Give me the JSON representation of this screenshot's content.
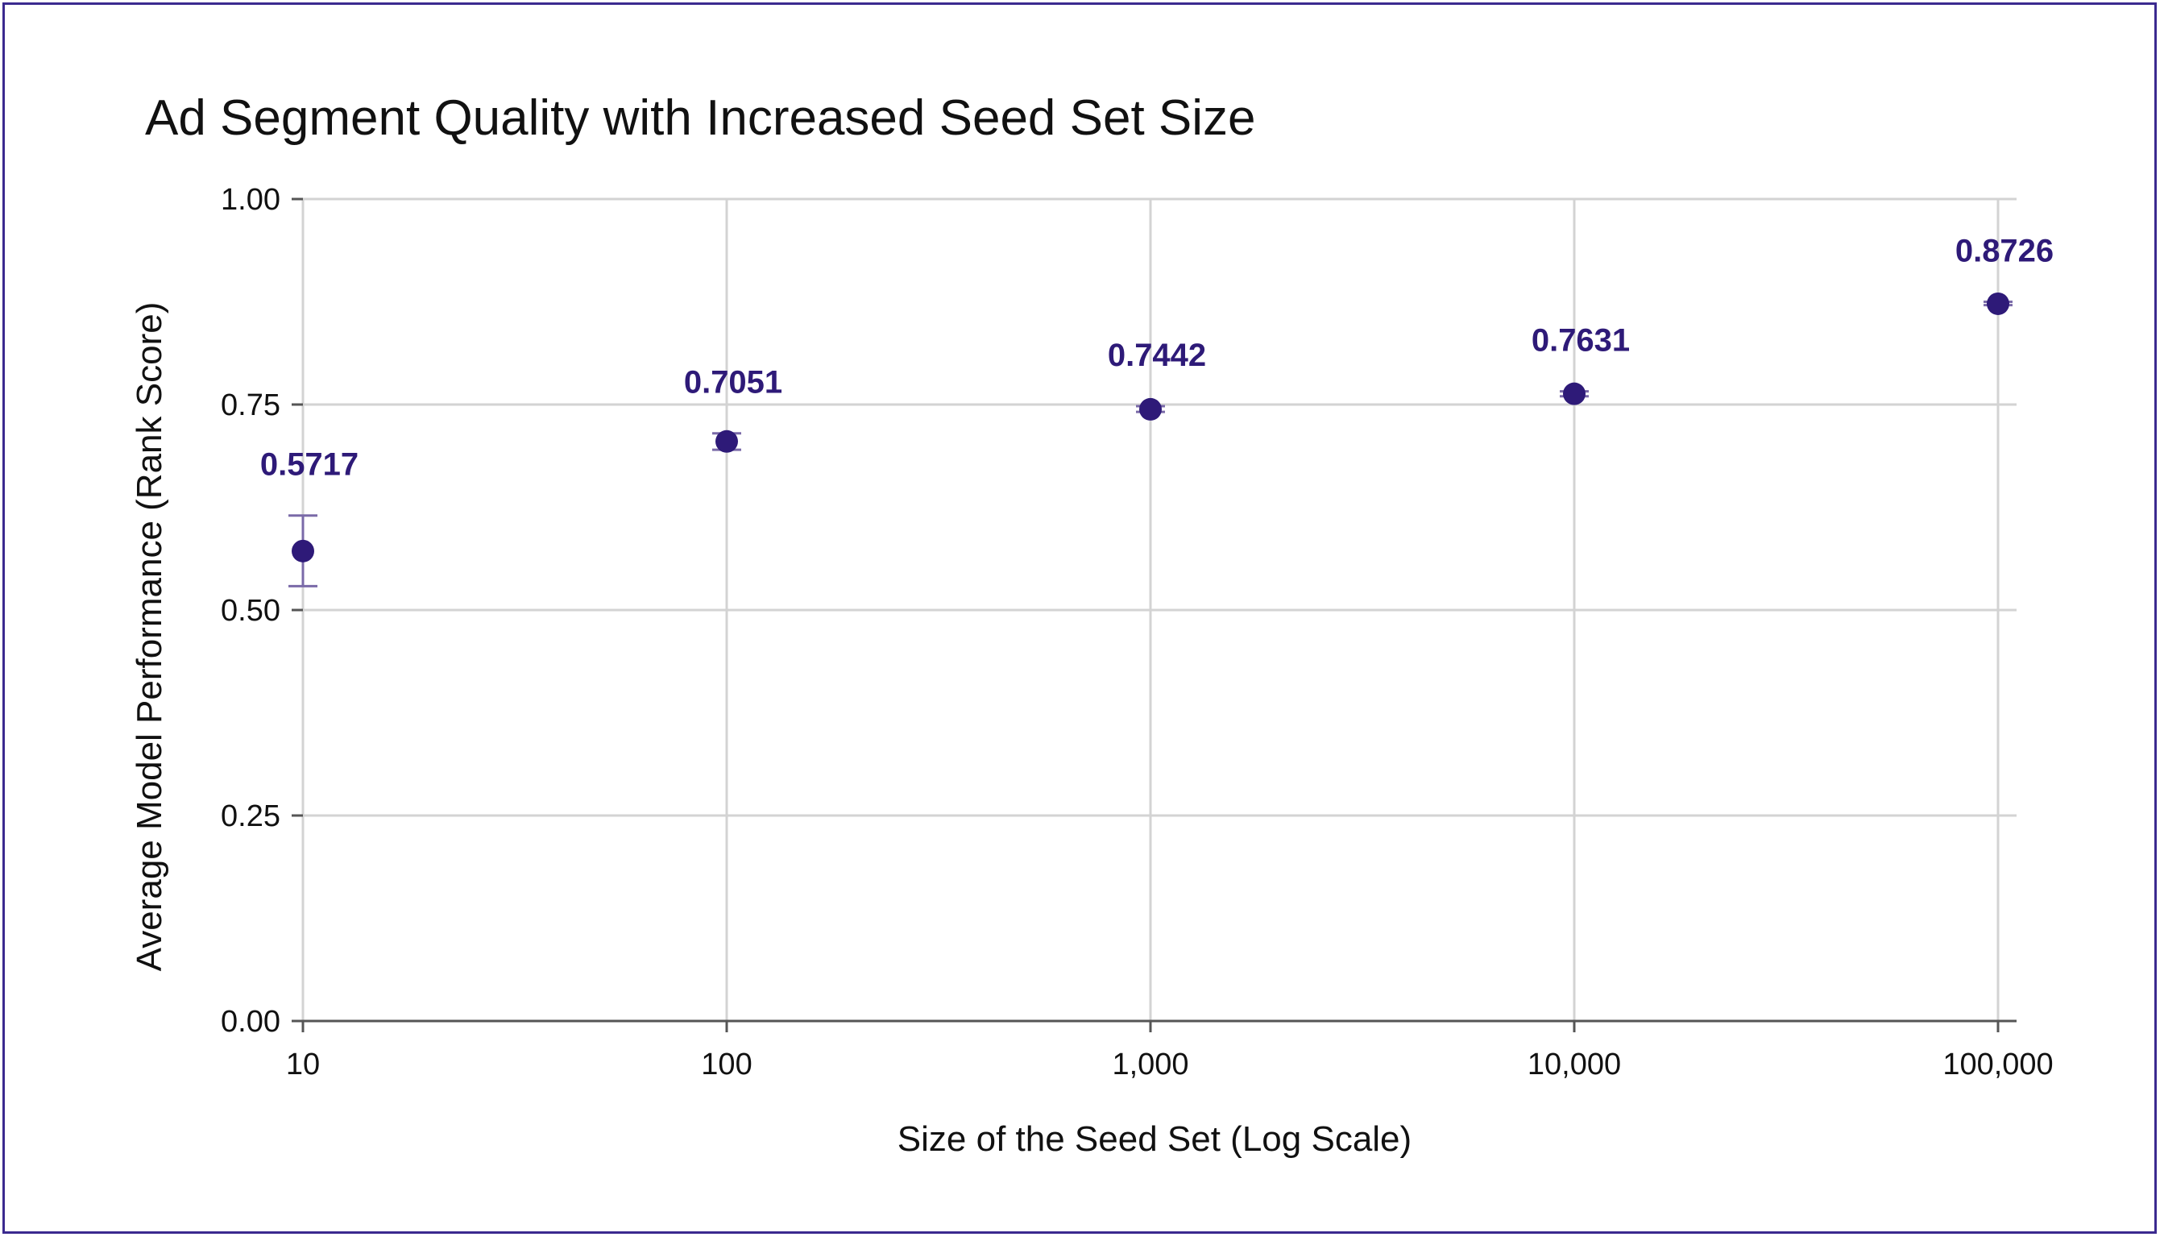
{
  "chart_data": {
    "type": "scatter",
    "title": "Ad Segment Quality with Increased Seed Set Size",
    "xlabel": "Size of the Seed Set (Log Scale)",
    "ylabel": "Average Model Performance (Rank Score)",
    "x_scale": "log",
    "x": [
      10,
      100,
      1000,
      10000,
      100000
    ],
    "x_tick_labels": [
      "10",
      "100",
      "1,000",
      "10,000",
      "100,000"
    ],
    "y_ticks": [
      0.0,
      0.25,
      0.5,
      0.75,
      1.0
    ],
    "y_tick_labels": [
      "0.00",
      "0.25",
      "0.50",
      "0.75",
      "1.00"
    ],
    "ylim": [
      0,
      1
    ],
    "series": [
      {
        "values": [
          0.5717,
          0.7051,
          0.7442,
          0.7631,
          0.8726
        ],
        "labels": [
          "0.5717",
          "0.7051",
          "0.7442",
          "0.7631",
          "0.8726"
        ],
        "error_low": [
          0.529,
          0.695,
          0.741,
          0.76,
          0.871
        ],
        "error_high": [
          0.615,
          0.715,
          0.748,
          0.766,
          0.875
        ],
        "color": "#2e1a78"
      }
    ],
    "grid": true,
    "legend": "none"
  },
  "colors": {
    "frame": "#3b2a8f",
    "marker": "#2e1a78",
    "data_label": "#2e1a78",
    "error_bar": "#7a6aa8",
    "grid": "#d3d3d3"
  }
}
